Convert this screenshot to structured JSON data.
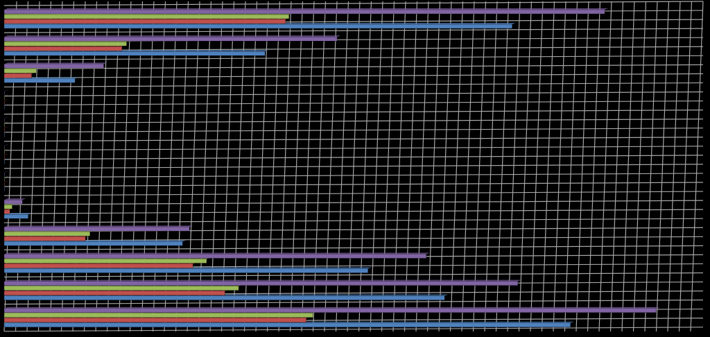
{
  "chart_data": {
    "type": "bar",
    "orientation": "horizontal",
    "background": "#000000",
    "grid": true,
    "categories": [
      null,
      null,
      null,
      null,
      null,
      null,
      null,
      null,
      null,
      null,
      null,
      null
    ],
    "series": [
      {
        "color": "#4f81bd",
        "values": [
          44.4,
          22.8,
          6.2,
          0,
          0,
          0,
          0,
          2.1,
          15.6,
          31.8,
          38.5,
          49.5
        ]
      },
      {
        "color": "#c0504d",
        "values": [
          24.6,
          10.3,
          2.4,
          0,
          0,
          0,
          0,
          0.5,
          7.1,
          16.5,
          19.3,
          26.4
        ]
      },
      {
        "color": "#9bbb59",
        "values": [
          24.9,
          10.7,
          2.8,
          0,
          0,
          0,
          0,
          0.7,
          7.5,
          17.7,
          20.5,
          27.0
        ]
      },
      {
        "color": "#8064a2",
        "values": [
          52.5,
          29.1,
          8.7,
          0,
          0,
          0,
          0,
          1.6,
          16.2,
          36.9,
          44.9,
          57.0
        ]
      }
    ],
    "xlim": [
      0,
      60
    ],
    "xticks": [
      0,
      1,
      2,
      3,
      4,
      5,
      6,
      7,
      8,
      9,
      10,
      11,
      12,
      13,
      14,
      15,
      16,
      17,
      18,
      19,
      20,
      21,
      22,
      23,
      24,
      25,
      26,
      27,
      28,
      29,
      30,
      31,
      32,
      33,
      34,
      35,
      36,
      37,
      38,
      39,
      40,
      41,
      42,
      43,
      44,
      45,
      46,
      47,
      48,
      49,
      50,
      51,
      52,
      53,
      54,
      55,
      56,
      57,
      58,
      59,
      60
    ]
  }
}
